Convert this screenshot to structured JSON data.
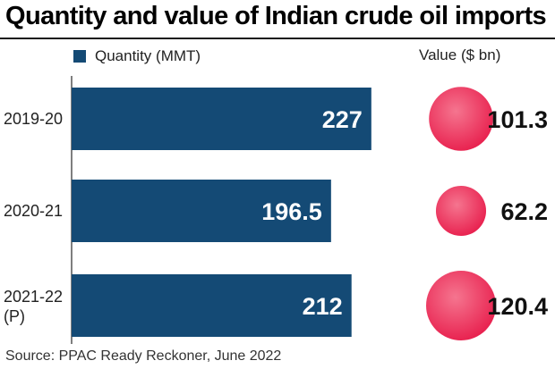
{
  "title": "Quantity and value of Indian crude oil imports",
  "legend": {
    "quantity_label": "Quantity (MMT)"
  },
  "value_header": "Value ($ bn)",
  "source": "Source: PPAC Ready Reckoner, June 2022",
  "colors": {
    "bar": "#144a75",
    "bubble": "#e8204e",
    "bubble_highlight": "#f5758f"
  },
  "chart_data": {
    "type": "bar",
    "orientation": "horizontal",
    "title": "Quantity and value of Indian crude oil imports",
    "categories": [
      {
        "label": "2019-20",
        "sublabel": ""
      },
      {
        "label": "2020-21",
        "sublabel": ""
      },
      {
        "label": "2021-22",
        "sublabel": "(P)"
      }
    ],
    "series": [
      {
        "name": "Quantity (MMT)",
        "values": [
          227,
          196.5,
          212
        ],
        "labels": [
          "227",
          "196.5",
          "212"
        ]
      },
      {
        "name": "Value ($ bn)",
        "values": [
          101.3,
          62.2,
          120.4
        ],
        "labels": [
          "101.3",
          "62.2",
          "120.4"
        ],
        "mark": "bubble"
      }
    ],
    "grid": false
  }
}
